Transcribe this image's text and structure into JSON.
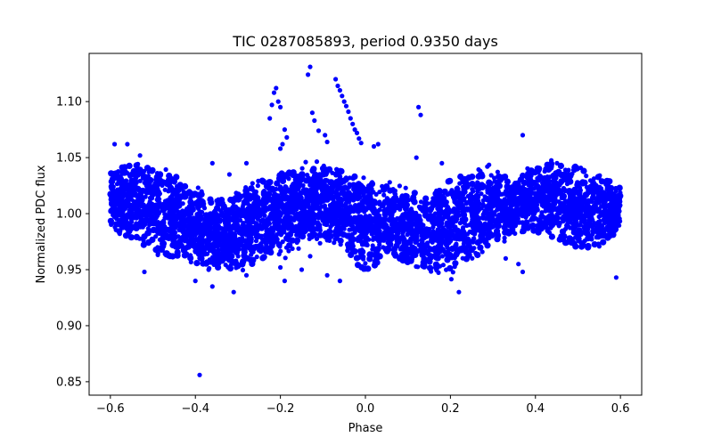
{
  "chart_data": {
    "type": "scatter",
    "title": "TIC 0287085893, period 0.9350 days",
    "xlabel": "Phase",
    "ylabel": "Normalized PDC flux",
    "xlim": [
      -0.65,
      0.65
    ],
    "ylim": [
      0.838,
      1.143
    ],
    "xticks": [
      -0.6,
      -0.4,
      -0.2,
      0.0,
      0.2,
      0.4,
      0.6
    ],
    "xtick_labels": [
      "−0.6",
      "−0.4",
      "−0.2",
      "0.0",
      "0.2",
      "0.4",
      "0.6"
    ],
    "yticks": [
      0.85,
      0.9,
      0.95,
      1.0,
      1.05,
      1.1
    ],
    "ytick_labels": [
      "0.85",
      "0.90",
      "0.95",
      "1.00",
      "1.05",
      "1.10"
    ],
    "marker_color": "#0000ff",
    "grid": false,
    "band": {
      "description": "dense point cloud: upper and lower envelope of normalized flux vs phase",
      "x": [
        -0.6,
        -0.55,
        -0.5,
        -0.45,
        -0.4,
        -0.35,
        -0.3,
        -0.25,
        -0.2,
        -0.15,
        -0.1,
        -0.05,
        -0.02,
        0.0,
        0.02,
        0.05,
        0.1,
        0.15,
        0.2,
        0.25,
        0.3,
        0.35,
        0.4,
        0.45,
        0.5,
        0.55,
        0.6
      ],
      "upper": [
        1.045,
        1.058,
        1.055,
        1.048,
        1.03,
        1.022,
        1.028,
        1.04,
        1.048,
        1.05,
        1.052,
        1.05,
        1.048,
        1.045,
        1.04,
        1.035,
        1.03,
        1.028,
        1.045,
        1.05,
        1.048,
        1.04,
        1.05,
        1.058,
        1.055,
        1.045,
        1.03
      ],
      "lower": [
        0.98,
        0.965,
        0.952,
        0.948,
        0.945,
        0.94,
        0.94,
        0.945,
        0.955,
        0.965,
        0.97,
        0.96,
        0.94,
        0.932,
        0.94,
        0.955,
        0.945,
        0.94,
        0.935,
        0.945,
        0.965,
        0.975,
        0.975,
        0.965,
        0.955,
        0.96,
        0.975
      ]
    },
    "outliers": [
      {
        "x": -0.13,
        "y": 1.131
      },
      {
        "x": -0.135,
        "y": 1.124
      },
      {
        "x": -0.21,
        "y": 1.112
      },
      {
        "x": -0.215,
        "y": 1.108
      },
      {
        "x": -0.205,
        "y": 1.1
      },
      {
        "x": -0.22,
        "y": 1.097
      },
      {
        "x": -0.2,
        "y": 1.095
      },
      {
        "x": -0.225,
        "y": 1.085
      },
      {
        "x": -0.125,
        "y": 1.09
      },
      {
        "x": -0.12,
        "y": 1.083
      },
      {
        "x": -0.07,
        "y": 1.12
      },
      {
        "x": -0.065,
        "y": 1.114
      },
      {
        "x": -0.06,
        "y": 1.11
      },
      {
        "x": -0.055,
        "y": 1.105
      },
      {
        "x": -0.05,
        "y": 1.1
      },
      {
        "x": -0.045,
        "y": 1.096
      },
      {
        "x": -0.04,
        "y": 1.091
      },
      {
        "x": -0.035,
        "y": 1.085
      },
      {
        "x": -0.03,
        "y": 1.08
      },
      {
        "x": -0.025,
        "y": 1.075
      },
      {
        "x": -0.02,
        "y": 1.072
      },
      {
        "x": -0.015,
        "y": 1.067
      },
      {
        "x": -0.01,
        "y": 1.063
      },
      {
        "x": -0.19,
        "y": 1.075
      },
      {
        "x": -0.185,
        "y": 1.068
      },
      {
        "x": -0.11,
        "y": 1.074
      },
      {
        "x": -0.095,
        "y": 1.07
      },
      {
        "x": -0.09,
        "y": 1.064
      },
      {
        "x": -0.2,
        "y": 1.058
      },
      {
        "x": -0.195,
        "y": 1.062
      },
      {
        "x": 0.125,
        "y": 1.095
      },
      {
        "x": 0.13,
        "y": 1.088
      },
      {
        "x": 0.12,
        "y": 1.05
      },
      {
        "x": 0.18,
        "y": 1.045
      },
      {
        "x": 0.37,
        "y": 1.07
      },
      {
        "x": 0.02,
        "y": 1.06
      },
      {
        "x": 0.03,
        "y": 1.062
      },
      {
        "x": -0.28,
        "y": 1.045
      },
      {
        "x": -0.32,
        "y": 1.035
      },
      {
        "x": -0.36,
        "y": 1.045
      },
      {
        "x": -0.39,
        "y": 0.856
      },
      {
        "x": -0.4,
        "y": 0.94
      },
      {
        "x": -0.36,
        "y": 0.935
      },
      {
        "x": -0.31,
        "y": 0.93
      },
      {
        "x": -0.28,
        "y": 0.945
      },
      {
        "x": -0.2,
        "y": 0.952
      },
      {
        "x": -0.19,
        "y": 0.94
      },
      {
        "x": -0.15,
        "y": 0.95
      },
      {
        "x": -0.13,
        "y": 0.962
      },
      {
        "x": -0.09,
        "y": 0.945
      },
      {
        "x": -0.06,
        "y": 0.94
      },
      {
        "x": 0.22,
        "y": 0.93
      },
      {
        "x": 0.33,
        "y": 0.96
      },
      {
        "x": 0.36,
        "y": 0.955
      },
      {
        "x": 0.37,
        "y": 0.948
      },
      {
        "x": 0.59,
        "y": 0.943
      },
      {
        "x": -0.52,
        "y": 0.948
      },
      {
        "x": -0.59,
        "y": 1.062
      },
      {
        "x": -0.56,
        "y": 1.062
      }
    ]
  }
}
